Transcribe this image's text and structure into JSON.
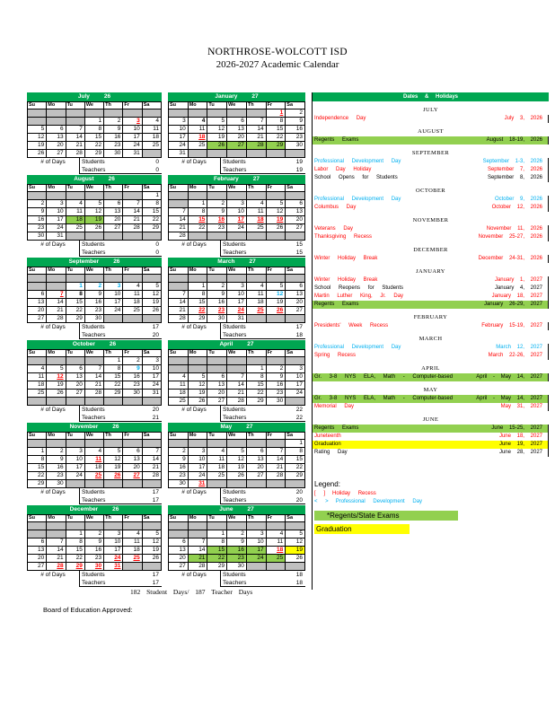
{
  "page": {
    "title": "NORTHROSE-WOLCOTT ISD",
    "subtitle": "2026-2027 Academic Calendar",
    "totals_line": "182 Student Days/ 187 Teacher Days",
    "approval_line": "Board of Education Approved:"
  },
  "colors": {
    "header_green": "#00A651",
    "exam_green": "#92D050",
    "graduation_yellow": "#FFFF00",
    "blank_grey": "#C0C0C0",
    "holiday_red": "#FF0000",
    "pd_blue": "#00B0F0"
  },
  "calendar": {
    "day_headers": [
      "Su",
      "Mo",
      "Tu",
      "We",
      "Th",
      "Fr",
      "Sa"
    ],
    "num_days_label": "# of Days",
    "students_label": "Students",
    "teachers_label": "Teachers",
    "months": [
      {
        "name": "July",
        "year": "26",
        "students": "0",
        "teachers": "0",
        "weeks": [
          [
            "",
            "",
            "",
            "",
            "",
            "",
            ""
          ],
          [
            "",
            "",
            "",
            "1",
            "2",
            "3h",
            "4"
          ],
          [
            "5",
            "6",
            "7",
            "8",
            "9",
            "10",
            "11"
          ],
          [
            "12",
            "13",
            "14",
            "15",
            "16",
            "17",
            "18"
          ],
          [
            "19",
            "20",
            "21",
            "22",
            "23",
            "24",
            "25"
          ],
          [
            "26",
            "27",
            "28",
            "29",
            "30",
            "31",
            ""
          ]
        ]
      },
      {
        "name": "August",
        "year": "26",
        "students": "0",
        "teachers": "0",
        "weeks": [
          [
            "",
            "",
            "",
            "",
            "",
            "",
            "1"
          ],
          [
            "2",
            "3",
            "4",
            "5",
            "6",
            "7",
            "8"
          ],
          [
            "9",
            "10",
            "11",
            "12",
            "13",
            "14",
            "15"
          ],
          [
            "16",
            "17",
            "18e",
            "19e",
            "20",
            "21",
            "22"
          ],
          [
            "23",
            "24",
            "25",
            "26",
            "27",
            "28",
            "29"
          ],
          [
            "30",
            "31",
            "",
            "",
            "",
            "",
            ""
          ]
        ]
      },
      {
        "name": "September",
        "year": "26",
        "students": "17",
        "teachers": "20",
        "weeks": [
          [
            "",
            "",
            "",
            "",
            "",
            "",
            ""
          ],
          [
            "",
            "",
            "1p",
            "2p",
            "3p",
            "4",
            "5"
          ],
          [
            "6",
            "7h",
            "8o",
            "9",
            "10",
            "11",
            "12"
          ],
          [
            "13",
            "14",
            "15",
            "16",
            "17",
            "18",
            "19"
          ],
          [
            "20",
            "21",
            "22",
            "23",
            "24",
            "25",
            "26"
          ],
          [
            "27",
            "28",
            "29",
            "30",
            "",
            "",
            ""
          ]
        ]
      },
      {
        "name": "October",
        "year": "26",
        "students": "20",
        "teachers": "21",
        "weeks": [
          [
            "",
            "",
            "",
            "",
            "1",
            "2",
            "3"
          ],
          [
            "4",
            "5",
            "6",
            "7",
            "8",
            "9p",
            "10"
          ],
          [
            "11",
            "12h",
            "13",
            "14",
            "15",
            "16",
            "17"
          ],
          [
            "18",
            "19",
            "20",
            "21",
            "22",
            "23",
            "24"
          ],
          [
            "25",
            "26",
            "27",
            "28",
            "29",
            "30",
            "31"
          ],
          [
            "",
            "",
            "",
            "",
            "",
            "",
            ""
          ]
        ]
      },
      {
        "name": "November",
        "year": "26",
        "students": "17",
        "teachers": "17",
        "weeks": [
          [
            "",
            "",
            "",
            "",
            "",
            "",
            ""
          ],
          [
            "1",
            "2",
            "3",
            "4",
            "5",
            "6",
            "7"
          ],
          [
            "8",
            "9",
            "10",
            "11h",
            "12",
            "13",
            "14"
          ],
          [
            "15",
            "16",
            "17",
            "18",
            "19",
            "20",
            "21"
          ],
          [
            "22",
            "23",
            "24",
            "25h",
            "26h",
            "27h",
            "28"
          ],
          [
            "29",
            "30",
            "",
            "",
            "",
            "",
            ""
          ]
        ]
      },
      {
        "name": "December",
        "year": "26",
        "students": "17",
        "teachers": "17",
        "weeks": [
          [
            "",
            "",
            "",
            "",
            "",
            "",
            ""
          ],
          [
            "",
            "",
            "1",
            "2",
            "3",
            "4",
            "5"
          ],
          [
            "6",
            "7",
            "8",
            "9",
            "10",
            "11",
            "12"
          ],
          [
            "13",
            "14",
            "15",
            "16",
            "17",
            "18",
            "19"
          ],
          [
            "20",
            "21",
            "22",
            "23",
            "24h",
            "25h",
            "26"
          ],
          [
            "27",
            "28h",
            "29h",
            "30h",
            "31h",
            "",
            ""
          ]
        ]
      },
      {
        "name": "January",
        "year": "27",
        "students": "19",
        "teachers": "19",
        "weeks": [
          [
            "",
            "",
            "",
            "",
            "",
            "1h",
            "2"
          ],
          [
            "3",
            "4o",
            "5",
            "6",
            "7",
            "8",
            "9"
          ],
          [
            "10",
            "11",
            "12",
            "13",
            "14",
            "15",
            "16"
          ],
          [
            "17",
            "18h",
            "19",
            "20",
            "21",
            "22",
            "23"
          ],
          [
            "24",
            "25",
            "26e",
            "27e",
            "28e",
            "29e",
            "30"
          ],
          [
            "31",
            "",
            "",
            "",
            "",
            "",
            ""
          ]
        ]
      },
      {
        "name": "February",
        "year": "27",
        "students": "15",
        "teachers": "15",
        "weeks": [
          [
            "",
            "",
            "",
            "",
            "",
            "",
            ""
          ],
          [
            "",
            "1",
            "2",
            "3",
            "4",
            "5",
            "6"
          ],
          [
            "7",
            "8",
            "9",
            "10",
            "11",
            "12",
            "13"
          ],
          [
            "14",
            "15h",
            "16h",
            "17h",
            "18h",
            "19h",
            "20"
          ],
          [
            "21",
            "22",
            "23",
            "24",
            "25",
            "26",
            "27"
          ],
          [
            "28",
            "",
            "",
            "",
            "",
            "",
            ""
          ]
        ]
      },
      {
        "name": "March",
        "year": "27",
        "students": "17",
        "teachers": "18",
        "weeks": [
          [
            "",
            "",
            "",
            "",
            "",
            "",
            ""
          ],
          [
            "",
            "1",
            "2",
            "3",
            "4",
            "5",
            "6"
          ],
          [
            "7",
            "8",
            "9",
            "10",
            "11",
            "12p",
            "13"
          ],
          [
            "14",
            "15",
            "16",
            "17",
            "18",
            "19",
            "20"
          ],
          [
            "21",
            "22h",
            "23h",
            "24h",
            "25h",
            "26h",
            "27"
          ],
          [
            "28",
            "29",
            "30",
            "31",
            "",
            "",
            ""
          ]
        ]
      },
      {
        "name": "April",
        "year": "27",
        "students": "22",
        "teachers": "22",
        "weeks": [
          [
            "",
            "",
            "",
            "",
            "",
            "",
            ""
          ],
          [
            "",
            "",
            "",
            "",
            "1",
            "2",
            "3"
          ],
          [
            "4",
            "5",
            "6",
            "7",
            "8",
            "9",
            "10"
          ],
          [
            "11",
            "12",
            "13",
            "14",
            "15",
            "16",
            "17"
          ],
          [
            "18",
            "19",
            "20",
            "21",
            "22",
            "23",
            "24"
          ],
          [
            "25",
            "26",
            "27",
            "28",
            "29",
            "30",
            ""
          ]
        ]
      },
      {
        "name": "May",
        "year": "27",
        "students": "20",
        "teachers": "20",
        "weeks": [
          [
            "",
            "",
            "",
            "",
            "",
            "",
            "1"
          ],
          [
            "2",
            "3",
            "4",
            "5",
            "6",
            "7",
            "8"
          ],
          [
            "9",
            "10",
            "11",
            "12",
            "13",
            "14",
            "15"
          ],
          [
            "16",
            "17",
            "18",
            "19",
            "20",
            "21",
            "22"
          ],
          [
            "23",
            "24",
            "25",
            "26",
            "27",
            "28",
            "29"
          ],
          [
            "30",
            "31h",
            "",
            "",
            "",
            "",
            ""
          ]
        ]
      },
      {
        "name": "June",
        "year": "27",
        "students": "18",
        "teachers": "18",
        "weeks": [
          [
            "",
            "",
            "",
            "",
            "",
            "",
            ""
          ],
          [
            "",
            "",
            "1",
            "2",
            "3",
            "4",
            "5"
          ],
          [
            "6",
            "7",
            "8",
            "9",
            "10",
            "11",
            "12"
          ],
          [
            "13",
            "14",
            "15e",
            "16e",
            "17e",
            "18h",
            "19g"
          ],
          [
            "20",
            "21e",
            "22e",
            "23e",
            "24e",
            "25e",
            "26"
          ],
          [
            "27",
            "28",
            "29",
            "30",
            "",
            "",
            ""
          ]
        ]
      }
    ]
  },
  "events_panel": {
    "header": "Dates & Holidays",
    "sections": [
      {
        "month": "JULY",
        "rows": [
          {
            "label": "Independence Day",
            "date": "July 3, 2026",
            "style": "holiday"
          }
        ]
      },
      {
        "month": "AUGUST",
        "rows": [
          {
            "label": "Regents Exams",
            "date": "August 18-19, 2026",
            "style": "exam"
          }
        ]
      },
      {
        "month": "SEPTEMBER",
        "rows": [
          {
            "label": "Professional Development Day",
            "date": "September 1-3, 2026",
            "style": "pd"
          },
          {
            "label": "Labor Day Holiday",
            "date": "September 7, 2026",
            "style": "holiday"
          },
          {
            "label": "School Opens for Students",
            "date": "September 8, 2026",
            "style": "plain"
          }
        ]
      },
      {
        "month": "OCTOBER",
        "rows": [
          {
            "label": "Professional Development Day",
            "date": "October 9, 2026",
            "style": "pd"
          },
          {
            "label": "Columbus Day",
            "date": "October 12, 2026",
            "style": "holiday"
          }
        ]
      },
      {
        "month": "NOVEMBER",
        "rows": [
          {
            "label": "Veterans Day",
            "date": "November 11, 2026",
            "style": "holiday"
          },
          {
            "label": "Thanksgiving Recess",
            "date": "November 25-27, 2026",
            "style": "holiday"
          }
        ]
      },
      {
        "month": "DECEMBER",
        "rows": [
          {
            "label": "Winter Holiday Break",
            "date": "December 24-31, 2026",
            "style": "holiday"
          }
        ]
      },
      {
        "month": "JANUARY",
        "rows": [
          {
            "label": "Winter Holiday Break",
            "date": "January 1, 2027",
            "style": "holiday"
          },
          {
            "label": "School Reopens for Students",
            "date": "January 4, 2027",
            "style": "plain"
          },
          {
            "label": "Martin Luther King, Jr. Day",
            "date": "January 18, 2027",
            "style": "holiday"
          },
          {
            "label": "Regents Exams",
            "date": "January 26-29, 2027",
            "style": "exam"
          }
        ]
      },
      {
        "month": "FEBRUARY",
        "rows": [
          {
            "label": "Presidents' Week Recess",
            "date": "February 15-19, 2027",
            "style": "holiday"
          }
        ]
      },
      {
        "month": "MARCH",
        "rows": [
          {
            "label": "Professional Development Day",
            "date": "March 12, 2027",
            "style": "pd"
          },
          {
            "label": "Spring Recess",
            "date": "March 22-26, 2027",
            "style": "holiday"
          }
        ]
      },
      {
        "month": "APRIL",
        "rows": [
          {
            "label": "Gr. 3-8 NYS ELA, Math - Computer-based",
            "date": "April - May 14, 2027",
            "style": "exam"
          }
        ]
      },
      {
        "month": "MAY",
        "rows": [
          {
            "label": "Gr. 3-8 NYS ELA, Math - Computer-based",
            "date": "April - May 14, 2027",
            "style": "exam"
          },
          {
            "label": "Memorial Day",
            "date": "May 31, 2027",
            "style": "holiday"
          }
        ]
      },
      {
        "month": "JUNE",
        "rows": [
          {
            "label": "Regents Exams",
            "date": "June 15-25, 2027",
            "style": "exam"
          },
          {
            "label": "Juneteenth",
            "date": "June 18, 2027",
            "style": "holiday"
          },
          {
            "label": "Graduation",
            "date": "June 19, 2027",
            "style": "grad"
          },
          {
            "label": "Rating Day",
            "date": "June 28, 2027",
            "style": "plain"
          }
        ]
      }
    ]
  },
  "legend": {
    "title": "Legend:",
    "holiday": {
      "symbol": "[ ]",
      "label": "Holiday Recess"
    },
    "pd": {
      "symbol": "< >",
      "label": "Professional Development Day"
    },
    "exams": "*Regents/State Exams",
    "graduation": "Graduation"
  }
}
